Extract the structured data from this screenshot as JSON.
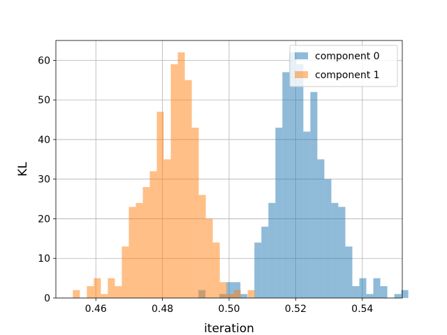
{
  "chart_data": {
    "type": "bar",
    "subtype": "histogram",
    "title": "",
    "xlabel": "iteration",
    "ylabel": "KL",
    "xlim": [
      0.448,
      0.552
    ],
    "ylim": [
      0,
      65
    ],
    "xticks": [
      0.46,
      0.48,
      0.5,
      0.52,
      0.54
    ],
    "xtick_labels": [
      "0.46",
      "0.48",
      "0.50",
      "0.52",
      "0.54"
    ],
    "yticks": [
      0,
      10,
      20,
      30,
      40,
      50,
      60
    ],
    "ytick_labels": [
      "0",
      "10",
      "20",
      "30",
      "40",
      "50",
      "60"
    ],
    "grid": true,
    "legend": "top-right",
    "series": [
      {
        "name": "component 0",
        "color": "#1f77b4",
        "alpha": 0.5,
        "bin_start": 0.4908,
        "bin_width": 0.0021,
        "counts": [
          2,
          0,
          0,
          1,
          4,
          4,
          1,
          0,
          14,
          18,
          24,
          43,
          57,
          62,
          59,
          42,
          52,
          35,
          30,
          24,
          23,
          13,
          3,
          5,
          1,
          5,
          3,
          0,
          1,
          2
        ]
      },
      {
        "name": "component 1",
        "color": "#ff7f0e",
        "alpha": 0.5,
        "bin_start": 0.4531,
        "bin_width": 0.0021,
        "counts": [
          2,
          0,
          3,
          5,
          1,
          5,
          3,
          13,
          23,
          24,
          28,
          32,
          47,
          35,
          59,
          62,
          55,
          43,
          26,
          20,
          14,
          4,
          1,
          2,
          0,
          2
        ]
      }
    ]
  }
}
